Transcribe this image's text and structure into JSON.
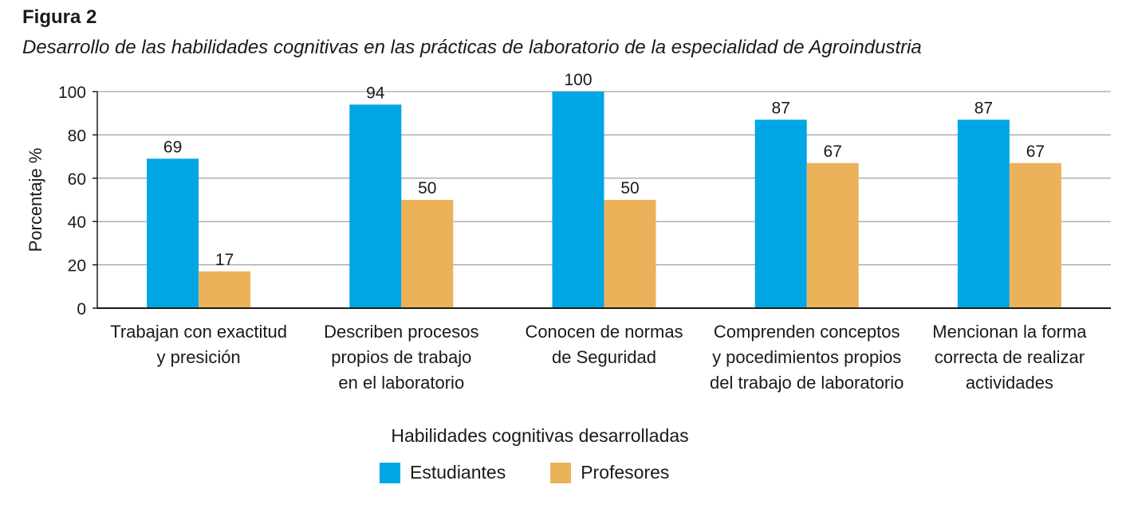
{
  "figure_label": "Figura 2",
  "figure_caption": "Desarrollo de las habilidades cognitivas en las prácticas de laboratorio de la especialidad de Agroindustria",
  "colors": {
    "estudiantes": "#00a6e4",
    "profesores": "#ecb25a",
    "grid": "#8c8c8c",
    "axis": "#1a1a1a"
  },
  "chart_data": {
    "type": "bar",
    "title": "Desarrollo de las habilidades cognitivas en las prácticas de laboratorio de la especialidad de Agroindustria",
    "ylabel": "Porcentaje %",
    "xlabel": "Habilidades cognitivas desarrolladas",
    "ylim": [
      0,
      100
    ],
    "yticks": [
      0,
      20,
      40,
      60,
      80,
      100
    ],
    "grid": true,
    "legend_position": "bottom",
    "categories": [
      [
        "Trabajan con exactitud",
        "y presición"
      ],
      [
        "Describen procesos",
        "propios de trabajo",
        "en el laboratorio"
      ],
      [
        "Conocen de normas",
        "de Seguridad"
      ],
      [
        "Comprenden conceptos",
        "y pocedimientos propios",
        "del trabajo de laboratorio"
      ],
      [
        "Mencionan la forma",
        "correcta de realizar",
        "actividades"
      ]
    ],
    "series": [
      {
        "name": "Estudiantes",
        "values": [
          69,
          94,
          100,
          87,
          87
        ]
      },
      {
        "name": "Profesores",
        "values": [
          17,
          50,
          50,
          67,
          67
        ]
      }
    ]
  }
}
